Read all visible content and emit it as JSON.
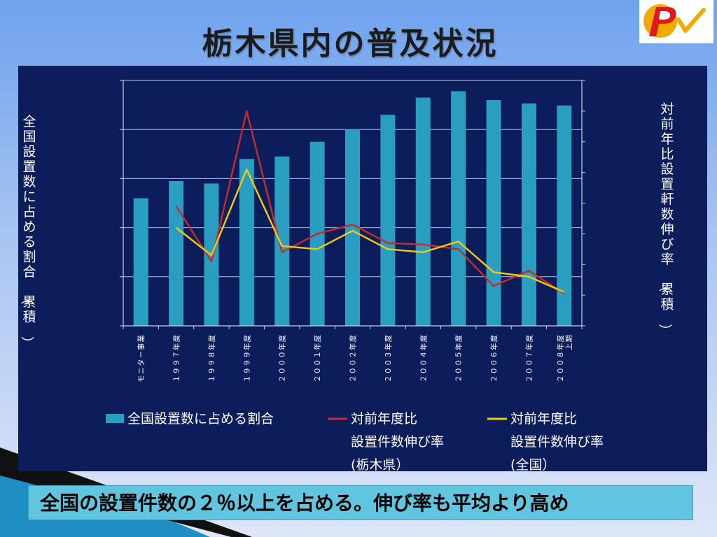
{
  "slide": {
    "title": "栃木県内の普及状況",
    "conclusion": "全国の設置件数の２％以上を占める。伸び率も平均より高め"
  },
  "colors": {
    "panel": "#0b1d5a",
    "bar": "#2a9ec0",
    "tochigi_line": "#c42c2c",
    "national_line": "#f2c614",
    "conclusion_box": "#62c5df"
  },
  "chart_data": {
    "type": "bar+line",
    "categories": [
      "モニター事業",
      "１９９７年度",
      "１９９８年度",
      "１９９９年度",
      "２０００年度",
      "２００１年度",
      "２００２年度",
      "２００３年度",
      "２００４年度",
      "２００５年度",
      "２００６年度",
      "２００７年度",
      "２００８年度上期"
    ],
    "left_axis_label": "全国設置数に占める割合（累積）",
    "right_axis_label": "対前年比設置軒数伸び率（累積）",
    "left_axis_ticks": 5,
    "right_axis_ticks": 8,
    "grid": true,
    "series": [
      {
        "name": "全国設置数に占める割合",
        "type": "bar",
        "axis": "left",
        "values": [
          2.6,
          2.95,
          2.9,
          3.4,
          3.45,
          3.75,
          4.0,
          4.3,
          4.65,
          4.78,
          4.6,
          4.53,
          4.49
        ]
      },
      {
        "name": "対前年度比設置件数伸び率(栃木県）",
        "name_lines": [
          "対前年度比",
          "設置件数伸び率",
          "(栃木県）"
        ],
        "type": "line",
        "axis": "right",
        "values": [
          null,
          3.9,
          2.1,
          7.0,
          2.4,
          3.0,
          3.3,
          2.7,
          2.65,
          2.5,
          1.3,
          1.8,
          1.05
        ]
      },
      {
        "name": "対前年度比設置件数伸び率(全国）",
        "name_lines": [
          "対前年度比",
          "設置件数伸び率",
          "(全国）"
        ],
        "type": "line",
        "axis": "right",
        "values": [
          null,
          3.2,
          2.3,
          5.1,
          2.6,
          2.5,
          3.1,
          2.5,
          2.4,
          2.75,
          1.75,
          1.6,
          1.1
        ]
      }
    ],
    "left_ylim": [
      0,
      5
    ],
    "right_ylim": [
      0,
      8
    ]
  }
}
